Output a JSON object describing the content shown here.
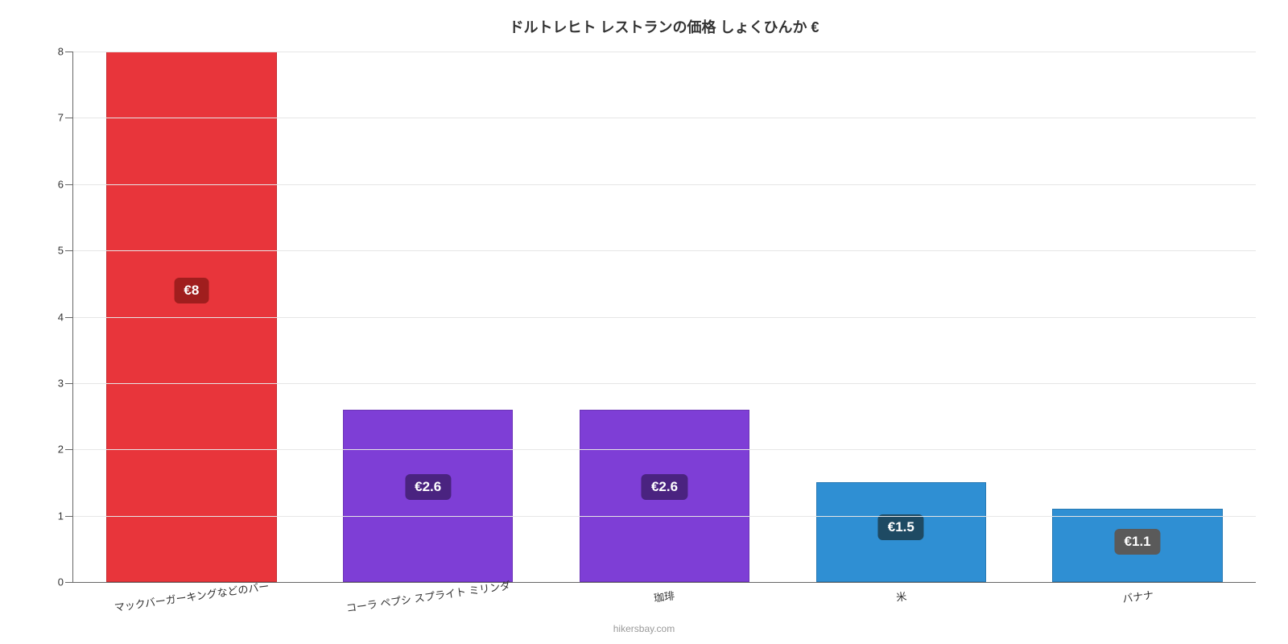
{
  "chart": {
    "type": "bar",
    "title": "ドルトレヒト レストランの価格 しょくひんか €",
    "title_fontsize": 18,
    "title_color": "#333333",
    "background_color": "#ffffff",
    "grid_color": "#e6e6e6",
    "axis_color": "#666666",
    "y": {
      "min": 0,
      "max": 8,
      "tick_step": 1,
      "ticks": [
        0,
        1,
        2,
        3,
        4,
        5,
        6,
        7,
        8
      ],
      "label_fontsize": 13,
      "label_color": "#333333"
    },
    "x": {
      "label_fontsize": 13,
      "label_color": "#333333",
      "label_rotate_deg": -8
    },
    "bar_width_pct": 72,
    "categories": [
      "マックバーガーキングなどのバー",
      "コーラ ペプシ スプライト ミリンダ",
      "珈琲",
      "米",
      "バナナ"
    ],
    "values": [
      8,
      2.6,
      2.6,
      1.5,
      1.1
    ],
    "value_labels": [
      "€8",
      "€2.6",
      "€2.6",
      "€1.5",
      "€1.1"
    ],
    "bar_colors": [
      "#e8353b",
      "#7e3ed6",
      "#7e3ed6",
      "#2f8fd3",
      "#2f8fd3"
    ],
    "badge_colors": [
      "#a01e1e",
      "#4a2380",
      "#4a2380",
      "#1e4a63",
      "#5a5a5a"
    ],
    "badge_fontsize": 17,
    "badge_text_color": "#ffffff",
    "attribution": "hikersbay.com",
    "attribution_color": "#999999",
    "attribution_fontsize": 12
  }
}
